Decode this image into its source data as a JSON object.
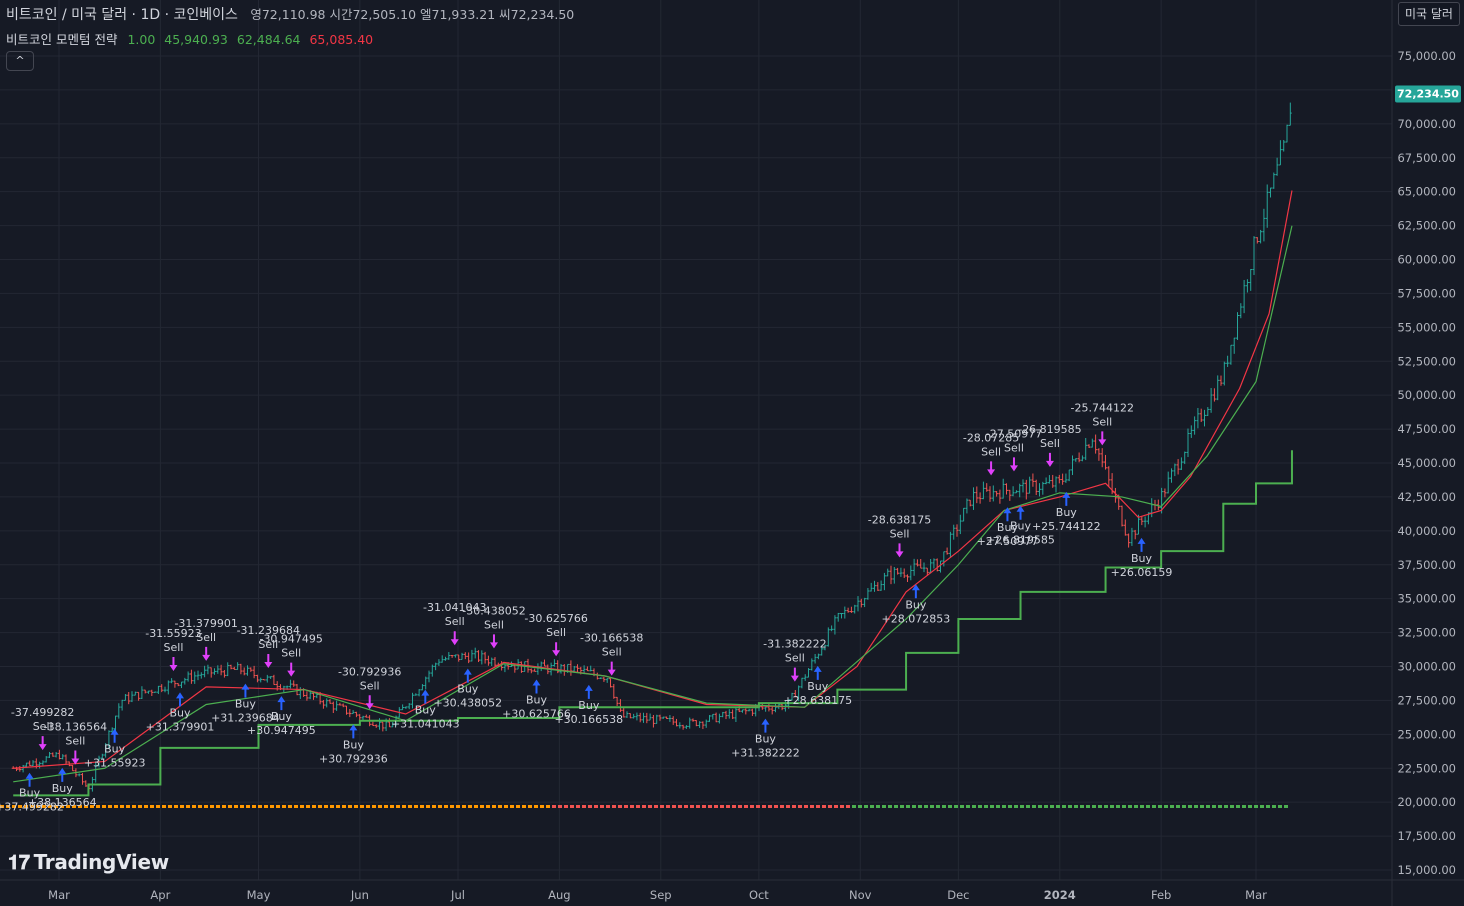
{
  "header": {
    "symbol": "비트코인 / 미국 달러 · 1D · 코인베이스",
    "open_label": "영",
    "open": "72,110.98",
    "high_label": "시",
    "high": "72,505.10",
    "low_label": "엘",
    "low": "71,933.21",
    "close_label": "씨",
    "close": "72,234.50",
    "ohlc_text": "영72,110.98 시간72,505.10 엘71,933.21 씨72,234.50"
  },
  "indicator": {
    "name": "비트코인 모멘텀 전략",
    "v1": "1.00",
    "v2": "45,940.93",
    "v3": "62,484.64",
    "v4": "65,085.40"
  },
  "currency_button": "미국 달러",
  "collapse_icon": "chevron-up-icon",
  "logo": "TradingView",
  "last_price_label": "72,234.50",
  "colors": {
    "background": "#161a25",
    "up": "#26a69a",
    "down": "#ef5350",
    "green_line": "#4caf50",
    "red_line": "#f23645",
    "buy_arrow": "#2962ff",
    "sell_arrow": "#e040fb",
    "price_tag": "#26a69a"
  },
  "chart_data": {
    "type": "line",
    "title": "",
    "y_ticks": [
      "75,000.00",
      "72,500.00",
      "70,000.00",
      "67,500.00",
      "65,000.00",
      "62,500.00",
      "60,000.00",
      "57,500.00",
      "55,000.00",
      "52,500.00",
      "50,000.00",
      "47,500.00",
      "45,000.00",
      "42,500.00",
      "40,000.00",
      "37,500.00",
      "35,000.00",
      "32,500.00",
      "30,000.00",
      "27,500.00",
      "25,000.00",
      "22,500.00",
      "20,000.00",
      "17,500.00",
      "15,000.00"
    ],
    "ylim": [
      14000,
      78000
    ],
    "x_ticks": [
      "Mar",
      "Apr",
      "May",
      "Jun",
      "Jul",
      "Aug",
      "Sep",
      "Oct",
      "Nov",
      "Dec",
      "2024",
      "Feb",
      "Mar"
    ],
    "grid": true,
    "series": [
      {
        "key": "price",
        "color": "#26a69a",
        "x": [
          "2023-02-15",
          "2023-03-01",
          "2023-03-10",
          "2023-03-20",
          "2023-04-01",
          "2023-04-14",
          "2023-04-25",
          "2023-05-10",
          "2023-05-25",
          "2023-06-10",
          "2023-06-25",
          "2023-07-05",
          "2023-07-20",
          "2023-08-05",
          "2023-08-16",
          "2023-08-20",
          "2023-09-10",
          "2023-10-01",
          "2023-10-10",
          "2023-10-25",
          "2023-11-10",
          "2023-11-25",
          "2023-12-05",
          "2023-12-15",
          "2024-01-01",
          "2024-01-11",
          "2024-01-22",
          "2024-02-01",
          "2024-02-12",
          "2024-02-20",
          "2024-03-01",
          "2024-03-10",
          "2024-03-12"
        ],
        "y": [
          22500,
          23500,
          21000,
          27500,
          28500,
          29500,
          29800,
          28500,
          27000,
          25500,
          30500,
          30800,
          30000,
          29800,
          29200,
          26300,
          25800,
          26900,
          27200,
          33500,
          36800,
          37500,
          42500,
          43000,
          43500,
          47000,
          39500,
          42500,
          48000,
          51500,
          61500,
          68500,
          72234.5
        ]
      },
      {
        "key": "fast",
        "color": "#f23645",
        "x": [
          "2023-02-15",
          "2023-03-15",
          "2023-04-15",
          "2023-05-15",
          "2023-06-15",
          "2023-07-15",
          "2023-08-15",
          "2023-09-15",
          "2023-10-15",
          "2023-10-31",
          "2023-11-15",
          "2023-12-01",
          "2023-12-15",
          "2024-01-01",
          "2024-01-15",
          "2024-01-25",
          "2024-02-01",
          "2024-02-10",
          "2024-02-25",
          "2024-03-05",
          "2024-03-12"
        ],
        "y": [
          22500,
          23000,
          28500,
          28300,
          26500,
          30300,
          29300,
          27200,
          27000,
          30000,
          35500,
          38500,
          41500,
          42500,
          43500,
          41000,
          41500,
          44000,
          50500,
          56000,
          65085.4
        ]
      },
      {
        "key": "slow",
        "color": "#4caf50",
        "x": [
          "2023-02-15",
          "2023-03-15",
          "2023-04-15",
          "2023-05-15",
          "2023-06-15",
          "2023-07-15",
          "2023-08-15",
          "2023-09-15",
          "2023-10-15",
          "2023-11-15",
          "2023-12-01",
          "2023-12-15",
          "2024-01-01",
          "2024-01-20",
          "2024-02-01",
          "2024-02-15",
          "2024-03-01",
          "2024-03-12"
        ],
        "y": [
          21500,
          22500,
          27200,
          28300,
          26000,
          30200,
          29300,
          27300,
          27000,
          33500,
          37500,
          41500,
          42800,
          42500,
          41800,
          45500,
          51000,
          62484.64
        ]
      },
      {
        "key": "trail",
        "color": "#4caf50",
        "x": [
          "2023-02-15",
          "2023-03-10",
          "2023-04-01",
          "2023-05-01",
          "2023-06-01",
          "2023-07-01",
          "2023-08-01",
          "2023-09-01",
          "2023-10-01",
          "2023-10-25",
          "2023-11-15",
          "2023-12-01",
          "2023-12-20",
          "2024-01-15",
          "2024-02-01",
          "2024-02-20",
          "2024-03-01",
          "2024-03-12"
        ],
        "y": [
          20500,
          21300,
          24000,
          25700,
          26000,
          26200,
          27000,
          27000,
          27300,
          28300,
          31000,
          33500,
          35500,
          37300,
          38500,
          42000,
          43500,
          45940.93
        ]
      }
    ],
    "signals": [
      {
        "type": "Buy",
        "date": "2023-02-20",
        "value": "+37.499282"
      },
      {
        "type": "Sell",
        "date": "2023-02-24",
        "value": "-37.499282"
      },
      {
        "type": "Buy",
        "date": "2023-03-02",
        "value": "+38.136564"
      },
      {
        "type": "Sell",
        "date": "2023-03-06",
        "value": "-38.136564"
      },
      {
        "type": "Buy",
        "date": "2023-03-18",
        "value": "+31.55923"
      },
      {
        "type": "Sell",
        "date": "2023-04-05",
        "value": "-31.55923"
      },
      {
        "type": "Buy",
        "date": "2023-04-07",
        "value": "+31.379901"
      },
      {
        "type": "Sell",
        "date": "2023-04-15",
        "value": "-31.379901"
      },
      {
        "type": "Buy",
        "date": "2023-04-27",
        "value": "+31.239684"
      },
      {
        "type": "Sell",
        "date": "2023-05-04",
        "value": "-31.239684"
      },
      {
        "type": "Buy",
        "date": "2023-05-08",
        "value": "+30.947495"
      },
      {
        "type": "Sell",
        "date": "2023-05-11",
        "value": "-30.947495"
      },
      {
        "type": "Buy",
        "date": "2023-05-30",
        "value": "+30.792936"
      },
      {
        "type": "Sell",
        "date": "2023-06-04",
        "value": "-30.792936"
      },
      {
        "type": "Buy",
        "date": "2023-06-21",
        "value": "+31.041043"
      },
      {
        "type": "Sell",
        "date": "2023-06-30",
        "value": "-31.041043"
      },
      {
        "type": "Buy",
        "date": "2023-07-04",
        "value": "+30.438052"
      },
      {
        "type": "Sell",
        "date": "2023-07-12",
        "value": "-30.438052"
      },
      {
        "type": "Buy",
        "date": "2023-07-25",
        "value": "+30.625766"
      },
      {
        "type": "Sell",
        "date": "2023-07-31",
        "value": "-30.625766"
      },
      {
        "type": "Buy",
        "date": "2023-08-10",
        "value": "+30.166538"
      },
      {
        "type": "Sell",
        "date": "2023-08-17",
        "value": "-30.166538"
      },
      {
        "type": "Buy",
        "date": "2023-10-03",
        "value": "+31.382222"
      },
      {
        "type": "Sell",
        "date": "2023-10-12",
        "value": "-31.382222"
      },
      {
        "type": "Buy",
        "date": "2023-10-19",
        "value": "+28.638175"
      },
      {
        "type": "Sell",
        "date": "2023-11-13",
        "value": "-28.638175"
      },
      {
        "type": "Buy",
        "date": "2023-11-18",
        "value": "+28.072853"
      },
      {
        "type": "Sell",
        "date": "2023-12-11",
        "value": "-28.07285"
      },
      {
        "type": "Buy",
        "date": "2023-12-16",
        "value": "+27.50977"
      },
      {
        "type": "Sell",
        "date": "2023-12-18",
        "value": "-27.50977"
      },
      {
        "type": "Buy",
        "date": "2023-12-20",
        "value": "+26.819585"
      },
      {
        "type": "Sell",
        "date": "2023-12-29",
        "value": "-26.819585"
      },
      {
        "type": "Buy",
        "date": "2024-01-03",
        "value": "+25.744122"
      },
      {
        "type": "Sell",
        "date": "2024-01-14",
        "value": "-25.744122"
      },
      {
        "type": "Buy",
        "date": "2024-01-26",
        "value": "+26.06159"
      }
    ],
    "signal_labels": {
      "buy": "Buy",
      "sell": "Sell"
    }
  }
}
